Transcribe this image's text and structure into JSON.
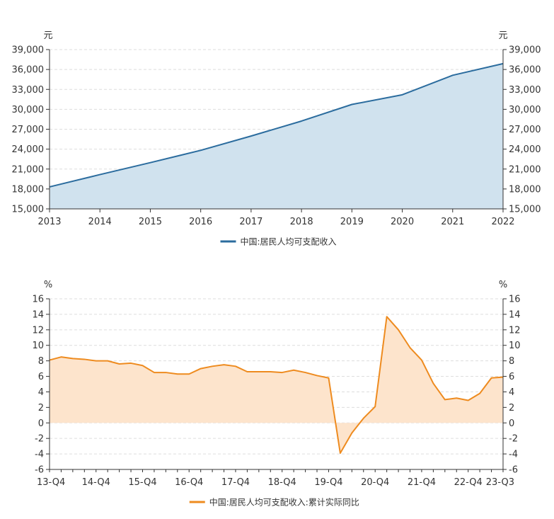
{
  "chart_data": [
    {
      "type": "area",
      "unit_left": "元",
      "unit_right": "元",
      "x": [
        "2013",
        "2014",
        "2015",
        "2016",
        "2017",
        "2018",
        "2019",
        "2020",
        "2021",
        "2022"
      ],
      "series": [
        {
          "name": "中国:居民人均可支配收入",
          "color": "#2b6c9e",
          "fill": "#d0e2ee",
          "values": [
            18311,
            20167,
            21966,
            23821,
            25974,
            28228,
            30733,
            32189,
            35128,
            36883
          ]
        }
      ],
      "ylim": [
        15000,
        39000
      ],
      "yticks": [
        15000,
        18000,
        21000,
        24000,
        27000,
        30000,
        33000,
        36000,
        39000
      ],
      "ytick_labels": [
        "15,000",
        "18,000",
        "21,000",
        "24,000",
        "27,000",
        "30,000",
        "33,000",
        "36,000",
        "39,000"
      ],
      "grid": true,
      "legend_position": "bottom"
    },
    {
      "type": "area",
      "unit_left": "%",
      "unit_right": "%",
      "x": [
        "13-Q4",
        "14-Q1",
        "14-Q2",
        "14-Q3",
        "14-Q4",
        "15-Q1",
        "15-Q2",
        "15-Q3",
        "15-Q4",
        "16-Q1",
        "16-Q2",
        "16-Q3",
        "16-Q4",
        "17-Q1",
        "17-Q2",
        "17-Q3",
        "17-Q4",
        "18-Q1",
        "18-Q2",
        "18-Q3",
        "18-Q4",
        "19-Q1",
        "19-Q2",
        "19-Q3",
        "19-Q4",
        "20-Q1",
        "20-Q2",
        "20-Q3",
        "20-Q4",
        "21-Q1",
        "21-Q2",
        "21-Q3",
        "21-Q4",
        "22-Q1",
        "22-Q2",
        "22-Q3",
        "22-Q4",
        "23-Q1",
        "23-Q2",
        "23-Q3"
      ],
      "x_tick_labels": [
        "13-Q4",
        "14-Q4",
        "15-Q4",
        "16-Q4",
        "17-Q4",
        "18-Q4",
        "19-Q4",
        "20-Q4",
        "21-Q4",
        "22-Q4",
        "23-Q3"
      ],
      "series": [
        {
          "name": "中国:居民人均可支配收入:累计实际同比",
          "color": "#ee8b1f",
          "fill": "#fde4cc",
          "values": [
            8.1,
            8.5,
            8.3,
            8.2,
            8.0,
            8.0,
            7.6,
            7.7,
            7.4,
            6.5,
            6.5,
            6.3,
            6.3,
            7.0,
            7.3,
            7.5,
            7.3,
            6.6,
            6.6,
            6.6,
            6.5,
            6.8,
            6.5,
            6.1,
            5.8,
            -3.9,
            -1.3,
            0.6,
            2.1,
            13.7,
            12.0,
            9.7,
            8.1,
            5.1,
            3.0,
            3.2,
            2.9,
            3.8,
            5.8,
            5.9
          ]
        }
      ],
      "ylim": [
        -6,
        16
      ],
      "yticks": [
        -6,
        -4,
        -2,
        0,
        2,
        4,
        6,
        8,
        10,
        12,
        14,
        16
      ],
      "ytick_labels": [
        "-6",
        "-4",
        "-2",
        "0",
        "2",
        "4",
        "6",
        "8",
        "10",
        "12",
        "14",
        "16"
      ],
      "grid": true,
      "legend_position": "bottom"
    }
  ]
}
